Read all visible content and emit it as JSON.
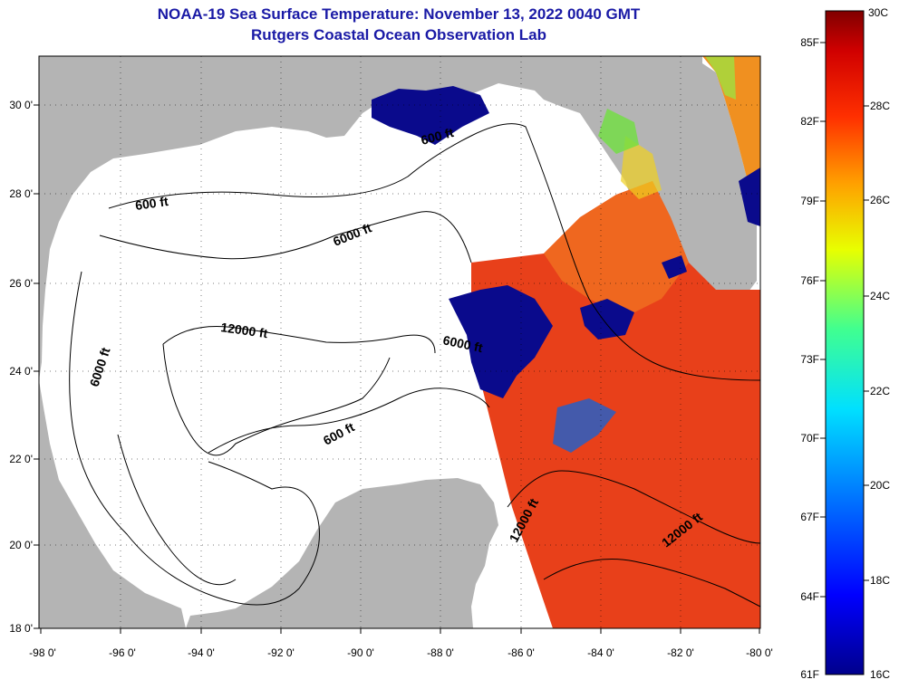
{
  "title": {
    "line1": "NOAA-19 Sea Surface Temperature:  November 13, 2022 0040 GMT",
    "line2": "Rutgers Coastal Ocean Observation Lab"
  },
  "map": {
    "lon_ticks": [
      "-98 0'",
      "-96 0'",
      "-94 0'",
      "-92 0'",
      "-90 0'",
      "-88 0'",
      "-86 0'",
      "-84 0'",
      "-82 0'",
      "-80 0'"
    ],
    "lat_ticks": [
      "30 0'",
      "28 0'",
      "26 0'",
      "24 0'",
      "22 0'",
      "20 0'",
      "18 0'"
    ],
    "contour_labels": [
      "600 ft",
      "600 ft",
      "6000 ft",
      "12000 ft",
      "6000 ft",
      "6000 ft",
      "600 ft",
      "12000 ft",
      "12000 ft"
    ],
    "colors": {
      "land": "#b4b4b4",
      "ocean_no_data": "#ffffff",
      "cold_cloud": "#0a0a8c",
      "warm_sst": "#e8401a"
    }
  },
  "colorbar": {
    "fahrenheit": [
      "85F",
      "82F",
      "79F",
      "76F",
      "73F",
      "70F",
      "67F",
      "64F",
      "61F"
    ],
    "celsius": [
      "30C",
      "28C",
      "26C",
      "24C",
      "22C",
      "20C",
      "18C",
      "16C"
    ]
  }
}
